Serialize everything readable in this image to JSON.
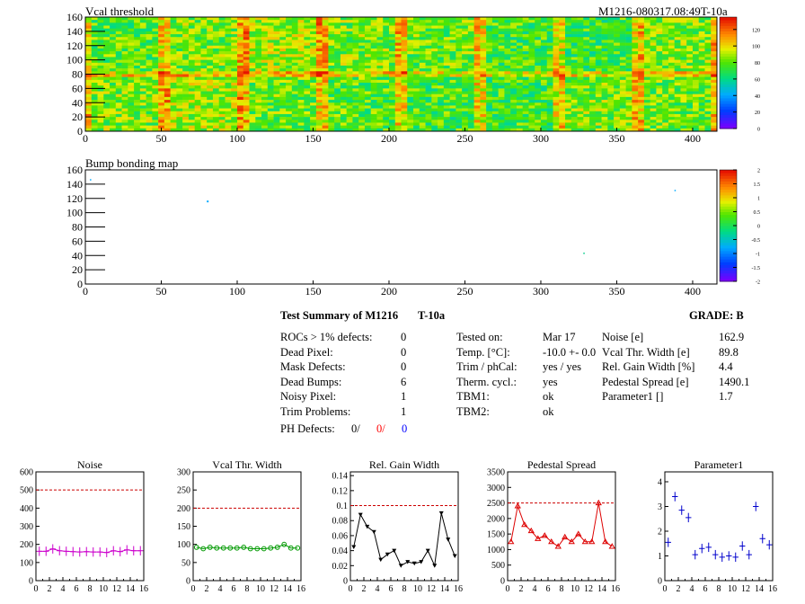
{
  "maps": {
    "vcal": {
      "title": "Vcal threshold",
      "module_label": "M1216-080317.08:49T-10a",
      "x_ticks": [
        "0",
        "50",
        "100",
        "150",
        "200",
        "250",
        "300",
        "350",
        "400"
      ],
      "y_ticks": [
        "0",
        "20",
        "40",
        "60",
        "80",
        "100",
        "120",
        "140",
        "160"
      ],
      "xlim": [
        0,
        416
      ],
      "ylim": [
        0,
        160
      ],
      "palette_ticks": [
        "0",
        "20",
        "40",
        "60",
        "80",
        "100",
        "120"
      ],
      "palette_range": [
        0,
        135
      ]
    },
    "bump": {
      "title": "Bump bonding map",
      "x_ticks": [
        "0",
        "50",
        "100",
        "150",
        "200",
        "250",
        "300",
        "350",
        "400"
      ],
      "y_ticks": [
        "0",
        "20",
        "40",
        "60",
        "80",
        "100",
        "120",
        "140",
        "160"
      ],
      "xlim": [
        0,
        416
      ],
      "ylim": [
        0,
        160
      ],
      "palette_ticks": [
        "-2",
        "-1.5",
        "-1",
        "-0.5",
        "0",
        "0.5",
        "1",
        "1.5",
        "2"
      ],
      "palette_range": [
        -2,
        2
      ]
    }
  },
  "summary": {
    "title": "Test Summary of M1216",
    "temp_label": "T-10a",
    "grade": "GRADE:  B",
    "defects": [
      {
        "label": "ROCs > 1% defects:",
        "value": "0"
      },
      {
        "label": "Dead Pixel:",
        "value": "0"
      },
      {
        "label": "Mask Defects:",
        "value": "0"
      },
      {
        "label": "Dead Bumps:",
        "value": "6"
      },
      {
        "label": "Noisy Pixel:",
        "value": "1"
      },
      {
        "label": "Trim Problems:",
        "value": "1"
      }
    ],
    "ph_defects": {
      "label": "PH Defects:",
      "v1": "0/",
      "v2": "0/",
      "v3": "0"
    },
    "conditions": [
      {
        "label": "Tested on:",
        "value": "Mar 17"
      },
      {
        "label": "Temp. [°C]:",
        "value": "-10.0 +- 0.0"
      },
      {
        "label": "Trim / phCal:",
        "value": "yes / yes"
      },
      {
        "label": "Therm. cycl.:",
        "value": "yes"
      },
      {
        "label": "TBM1:",
        "value": "ok"
      },
      {
        "label": "TBM2:",
        "value": "ok"
      }
    ],
    "results": [
      {
        "label": "Noise [e]",
        "value": "162.9"
      },
      {
        "label": "Vcal Thr. Width [e]",
        "value": "89.8"
      },
      {
        "label": "Rel. Gain Width [%]",
        "value": "4.4"
      },
      {
        "label": "Pedestal Spread [e]",
        "value": "1490.1"
      },
      {
        "label": "Parameter1 []",
        "value": "1.7"
      }
    ]
  },
  "chart_data": [
    {
      "type": "line",
      "title": "Noise",
      "x": [
        0,
        1,
        2,
        3,
        4,
        5,
        6,
        7,
        8,
        9,
        10,
        11,
        12,
        13,
        14,
        15
      ],
      "values": [
        162,
        162,
        175,
        165,
        162,
        160,
        158,
        160,
        158,
        158,
        155,
        165,
        160,
        170,
        165,
        165
      ],
      "limit": 500,
      "xlim": [
        0,
        16
      ],
      "ylim": [
        0,
        600
      ],
      "x_ticks": [
        "0",
        "2",
        "4",
        "6",
        "8",
        "10",
        "12",
        "14",
        "16"
      ],
      "y_ticks": [
        "0",
        "100",
        "200",
        "300",
        "400",
        "500",
        "600"
      ],
      "marker": "cross",
      "color": "#cc00cc"
    },
    {
      "type": "line",
      "title": "Vcal Thr. Width",
      "x": [
        0,
        1,
        2,
        3,
        4,
        5,
        6,
        7,
        8,
        9,
        10,
        11,
        12,
        13,
        14,
        15
      ],
      "values": [
        92,
        88,
        92,
        90,
        90,
        90,
        90,
        92,
        88,
        88,
        88,
        90,
        92,
        100,
        90,
        90
      ],
      "limit": 200,
      "xlim": [
        0,
        16
      ],
      "ylim": [
        0,
        300
      ],
      "x_ticks": [
        "0",
        "2",
        "4",
        "6",
        "8",
        "10",
        "12",
        "14",
        "16"
      ],
      "y_ticks": [
        "0",
        "50",
        "100",
        "150",
        "200",
        "250",
        "300"
      ],
      "marker": "circle",
      "color": "#009900"
    },
    {
      "type": "line",
      "title": "Rel. Gain Width",
      "x": [
        0,
        1,
        2,
        3,
        4,
        5,
        6,
        7,
        8,
        9,
        10,
        11,
        12,
        13,
        14,
        15
      ],
      "values": [
        0.045,
        0.088,
        0.072,
        0.065,
        0.028,
        0.035,
        0.04,
        0.02,
        0.025,
        0.023,
        0.025,
        0.04,
        0.02,
        0.09,
        0.055,
        0.033
      ],
      "limit": 0.1,
      "xlim": [
        0,
        16
      ],
      "ylim": [
        0,
        0.145
      ],
      "x_ticks": [
        "0",
        "2",
        "4",
        "6",
        "8",
        "10",
        "12",
        "14",
        "16"
      ],
      "y_ticks": [
        "0",
        "0.02",
        "0.04",
        "0.06",
        "0.08",
        "0.1",
        "0.12",
        "0.14"
      ],
      "marker": "triangle-down",
      "color": "#000000"
    },
    {
      "type": "line",
      "title": "Pedestal Spread",
      "x": [
        0,
        1,
        2,
        3,
        4,
        5,
        6,
        7,
        8,
        9,
        10,
        11,
        12,
        13,
        14,
        15
      ],
      "values": [
        1250,
        2400,
        1800,
        1600,
        1350,
        1450,
        1250,
        1100,
        1400,
        1250,
        1500,
        1250,
        1250,
        2500,
        1250,
        1100
      ],
      "limit": 2500,
      "xlim": [
        0,
        16
      ],
      "ylim": [
        0,
        3500
      ],
      "x_ticks": [
        "0",
        "2",
        "4",
        "6",
        "8",
        "10",
        "12",
        "14",
        "16"
      ],
      "y_ticks": [
        "0",
        "500",
        "1000",
        "1500",
        "2000",
        "2500",
        "3000",
        "3500"
      ],
      "marker": "triangle-up",
      "color": "#dd0000"
    },
    {
      "type": "scatter",
      "title": "Parameter1",
      "x": [
        0,
        1,
        2,
        3,
        4,
        5,
        6,
        7,
        8,
        9,
        10,
        11,
        12,
        13,
        14,
        15
      ],
      "values": [
        1.55,
        3.4,
        2.85,
        2.55,
        1.05,
        1.3,
        1.35,
        1.05,
        0.95,
        1.0,
        0.95,
        1.4,
        1.05,
        3.0,
        1.7,
        1.45
      ],
      "xlim": [
        0,
        16
      ],
      "ylim": [
        0,
        4.4
      ],
      "x_ticks": [
        "0",
        "2",
        "4",
        "6",
        "8",
        "10",
        "12",
        "14",
        "16"
      ],
      "y_ticks": [
        "0",
        "1",
        "2",
        "3",
        "4"
      ],
      "marker": "cross",
      "color": "#0000cc"
    }
  ]
}
